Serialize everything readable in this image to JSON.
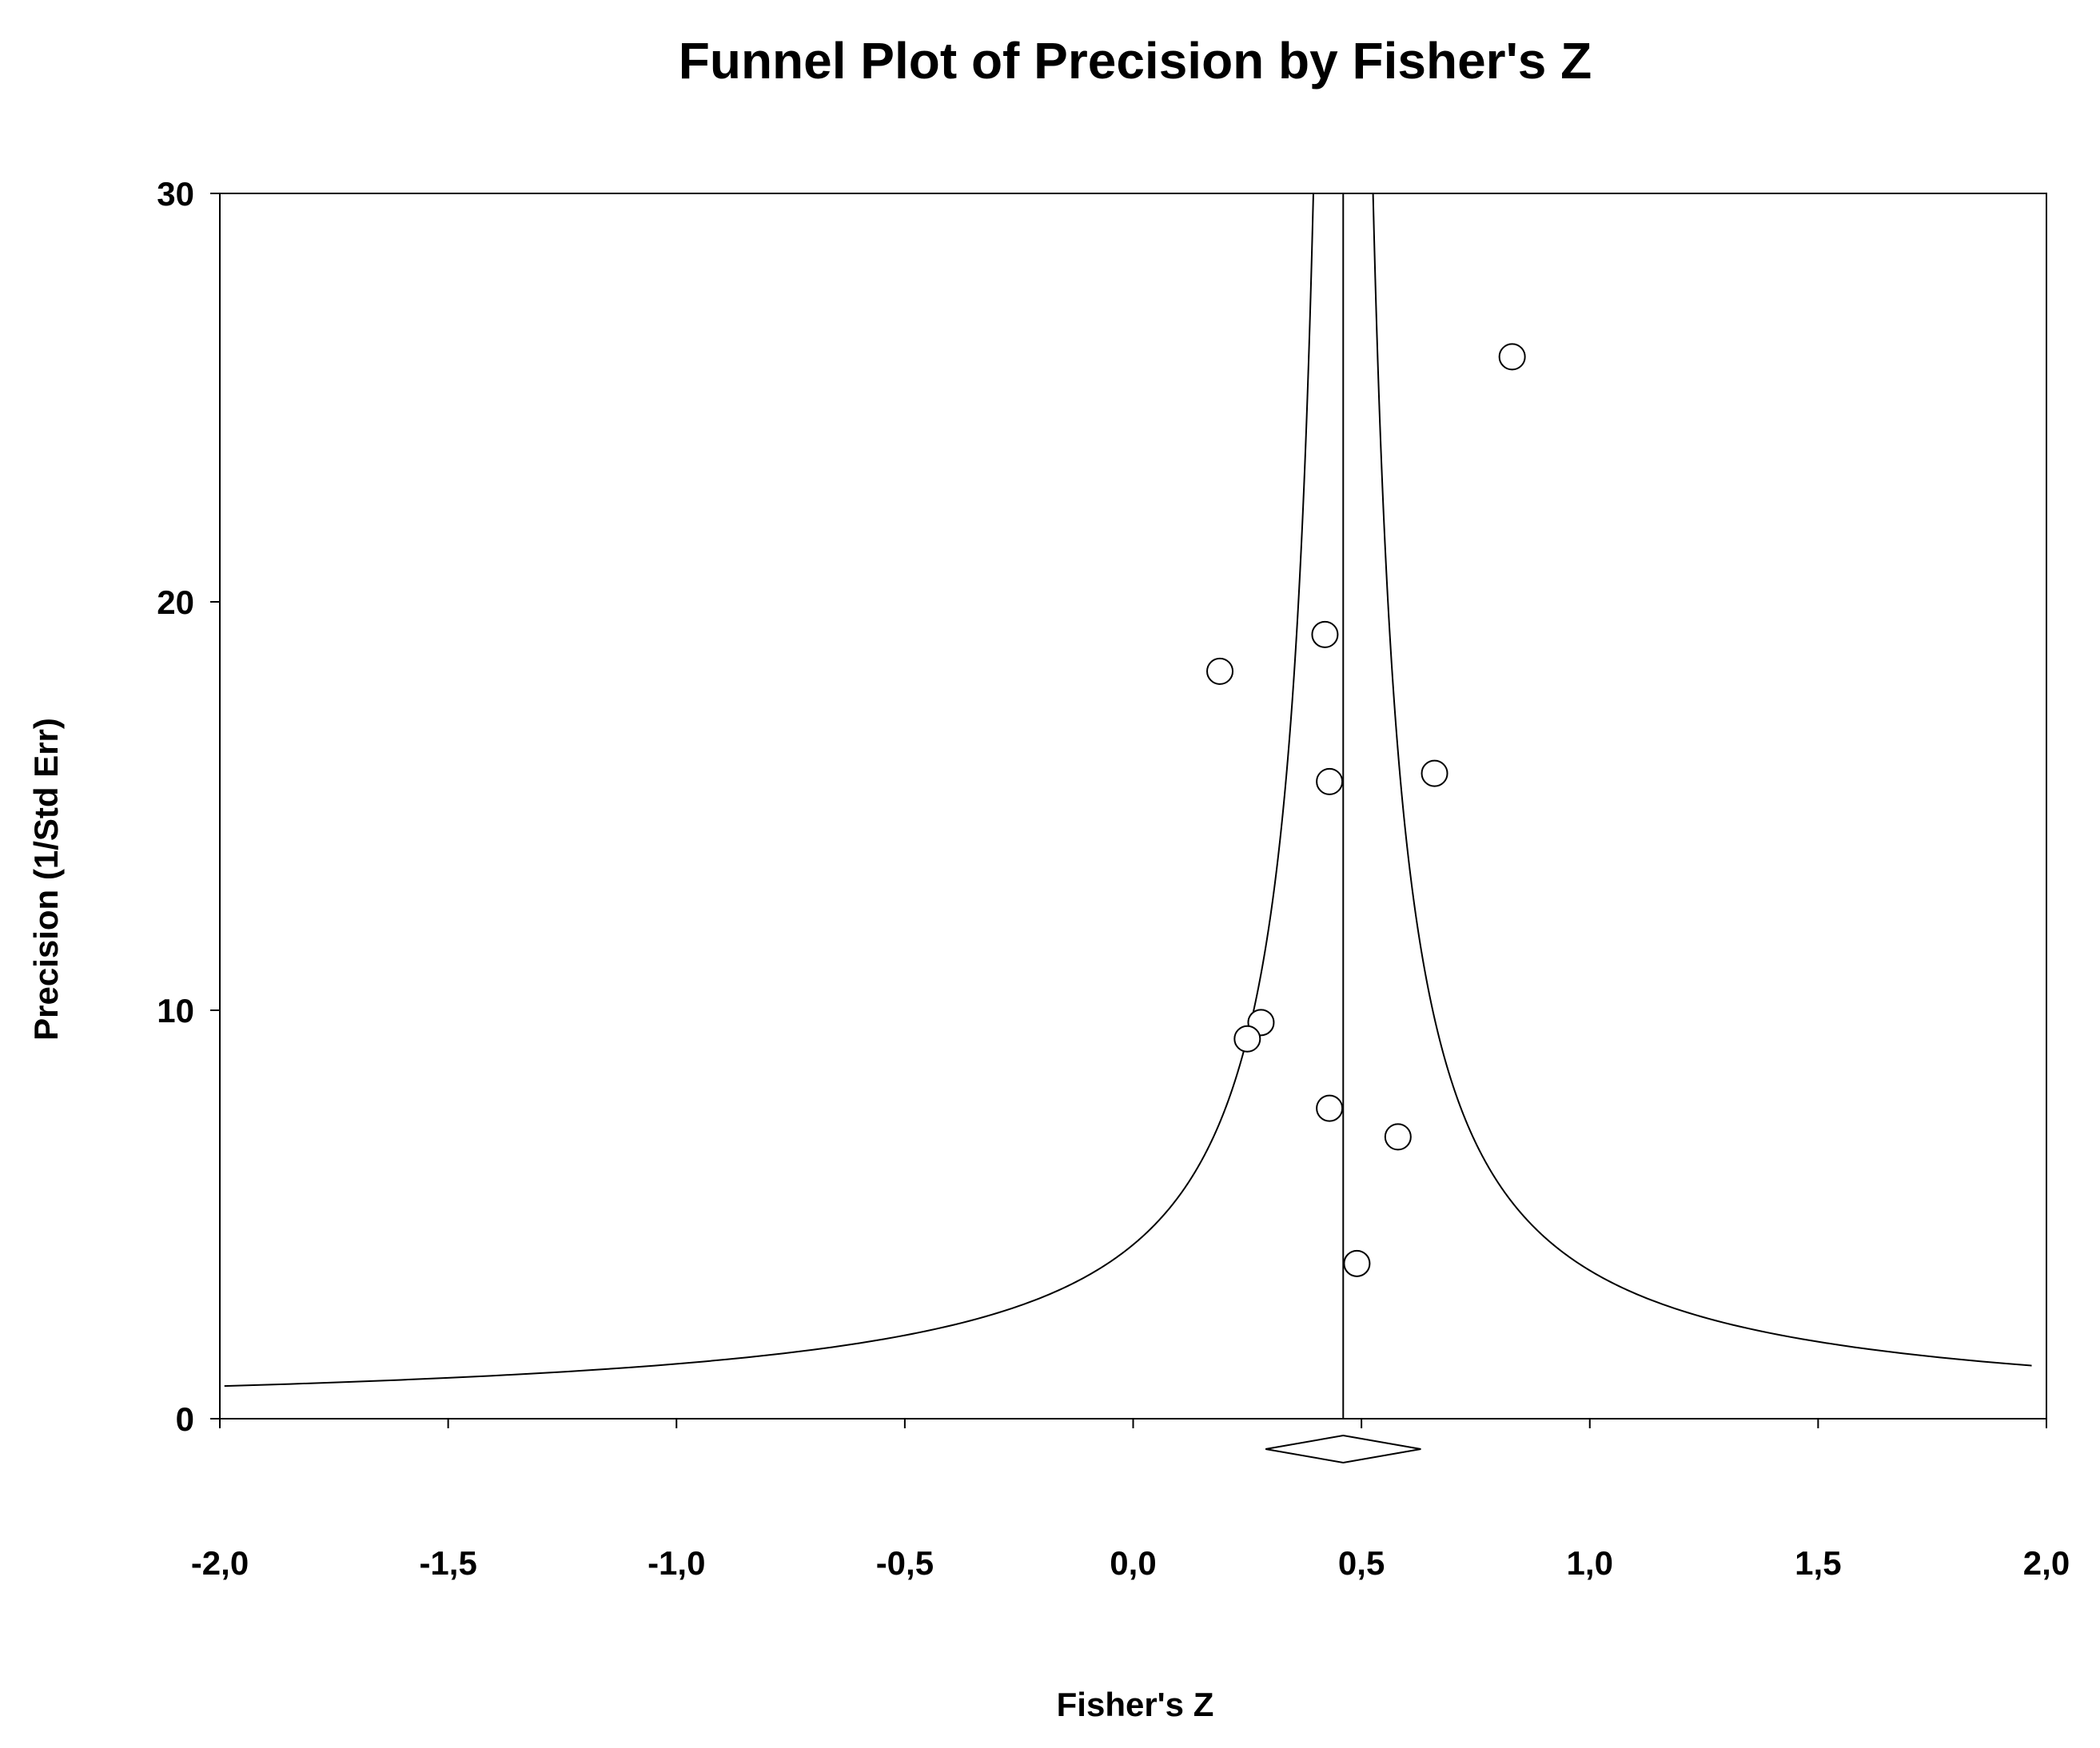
{
  "chart_data": {
    "type": "scatter",
    "title": "Funnel Plot of Precision by Fisher's Z",
    "xlabel": "Fisher's Z",
    "ylabel": "Precision (1/Std Err)",
    "xlim": [
      -2.0,
      2.0
    ],
    "ylim": [
      0,
      30
    ],
    "x_ticks": [
      -2.0,
      -1.5,
      -1.0,
      -0.5,
      0.0,
      0.5,
      1.0,
      1.5,
      2.0
    ],
    "x_tick_labels": [
      "-2,0",
      "-1,5",
      "-1,0",
      "-0,5",
      "0,0",
      "0,5",
      "1,0",
      "1,5",
      "2,0"
    ],
    "y_ticks": [
      0,
      10,
      20,
      30
    ],
    "y_tick_labels": [
      "0",
      "10",
      "20",
      "30"
    ],
    "grid": false,
    "points": [
      {
        "x": 0.83,
        "y": 26.0
      },
      {
        "x": 0.42,
        "y": 19.2
      },
      {
        "x": 0.19,
        "y": 18.3
      },
      {
        "x": 0.66,
        "y": 15.8
      },
      {
        "x": 0.43,
        "y": 15.6
      },
      {
        "x": 0.28,
        "y": 9.7
      },
      {
        "x": 0.25,
        "y": 9.3
      },
      {
        "x": 0.43,
        "y": 7.6
      },
      {
        "x": 0.58,
        "y": 6.9
      },
      {
        "x": 0.49,
        "y": 3.8
      }
    ],
    "summary_effect": {
      "estimate": 0.46,
      "ci_low": 0.29,
      "ci_high": 0.63
    },
    "funnel_z": 1.96,
    "colors": {
      "line": "#000000",
      "marker_fill": "#ffffff",
      "background": "#ffffff"
    }
  }
}
